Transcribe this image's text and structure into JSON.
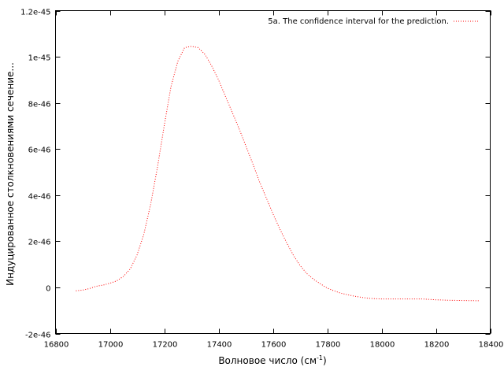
{
  "chart_data": {
    "type": "line",
    "title": "",
    "xlabel": "Волновое число (см",
    "xlabel_sup": "-1",
    "xlabel_tail": ")",
    "ylabel": "Индуцированное столкновениями сечение...",
    "xlim": [
      16800,
      18400
    ],
    "ylim": [
      -2e-46,
      1.2e-45
    ],
    "x_ticks": [
      16800,
      17000,
      17200,
      17400,
      17600,
      17800,
      18000,
      18200,
      18400
    ],
    "x_tick_labels": [
      "16800",
      "17000",
      "17200",
      "17400",
      "17600",
      "17800",
      "18000",
      "18200",
      "18400"
    ],
    "y_ticks": [
      -2e-46,
      0,
      2e-46,
      4e-46,
      6e-46,
      8e-46,
      1e-45,
      1.2e-45
    ],
    "y_tick_labels": [
      "-2e-46",
      "0",
      "2e-46",
      "4e-46",
      "6e-46",
      "8e-46",
      "1e-45",
      "1.2e-45"
    ],
    "grid": false,
    "legend_position": "top-right",
    "series": [
      {
        "name": "5a. The confidence interval for the prediction.",
        "color": "#ff0000",
        "style": "dotted",
        "x": [
          16875,
          16900,
          16925,
          16950,
          16975,
          17000,
          17025,
          17050,
          17075,
          17100,
          17125,
          17150,
          17175,
          17200,
          17225,
          17250,
          17275,
          17300,
          17325,
          17350,
          17375,
          17400,
          17425,
          17450,
          17475,
          17500,
          17525,
          17550,
          17575,
          17600,
          17625,
          17650,
          17675,
          17700,
          17725,
          17750,
          17775,
          17800,
          17825,
          17850,
          17875,
          17900,
          17925,
          17950,
          17975,
          18000,
          18050,
          18100,
          18150,
          18200,
          18250,
          18300,
          18360
        ],
        "y": [
          -1.5e-47,
          -1.2e-47,
          -5e-48,
          5e-48,
          1e-47,
          1.8e-47,
          2.8e-47,
          4.8e-47,
          8e-47,
          1.4e-46,
          2.3e-46,
          3.6e-46,
          5.2e-46,
          7e-46,
          8.7e-46,
          9.8e-46,
          1.04e-45,
          1.045e-45,
          1.04e-45,
          1.01e-45,
          9.6e-46,
          9e-46,
          8.3e-46,
          7.6e-46,
          6.9e-46,
          6.15e-46,
          5.4e-46,
          4.6e-46,
          3.9e-46,
          3.2e-46,
          2.55e-46,
          1.95e-46,
          1.4e-46,
          9.5e-47,
          6e-47,
          3.5e-47,
          1.5e-47,
          -3e-48,
          -1.5e-47,
          -2.5e-47,
          -3.2e-47,
          -3.8e-47,
          -4.3e-47,
          -4.7e-47,
          -4.9e-47,
          -5e-47,
          -5e-47,
          -5e-47,
          -5e-47,
          -5.4e-47,
          -5.6e-47,
          -5.7e-47,
          -5.8e-47
        ]
      }
    ]
  }
}
